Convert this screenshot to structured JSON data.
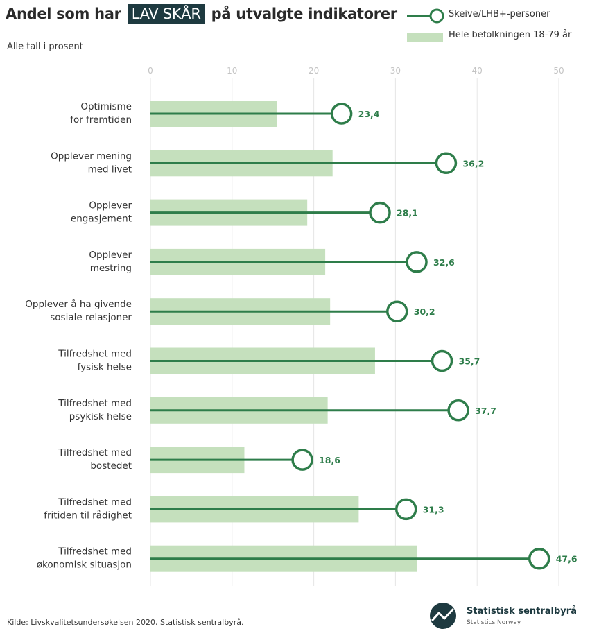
{
  "header": {
    "title_pre": "Andel som har",
    "title_highlight": "LAV SKÅR",
    "title_post": "på utvalgte indikatorer",
    "subtitle": "Alle tall i prosent"
  },
  "colors": {
    "line": "#2e7d4a",
    "bar": "#c5e0bd",
    "highlight_bg": "#1e3a40",
    "grid": "#e6e6e6",
    "tick": "#c4c4c4"
  },
  "chart_data": {
    "type": "bar",
    "orientation": "horizontal",
    "xlim": [
      0,
      50
    ],
    "xticks": [
      0,
      10,
      20,
      30,
      40,
      50
    ],
    "xtick_labels": [
      "0",
      "10",
      "20",
      "30",
      "40",
      "50"
    ],
    "grid": true,
    "legend_position": "top-right",
    "categories": [
      [
        "Optimisme",
        "for fremtiden"
      ],
      [
        "Opplever mening",
        "med livet"
      ],
      [
        "Opplever",
        "engasjement"
      ],
      [
        "Opplever",
        "mestring"
      ],
      [
        "Opplever å ha givende",
        "sosiale relasjoner"
      ],
      [
        "Tilfredshet med",
        "fysisk helse"
      ],
      [
        "Tilfredshet med",
        "psykisk helse"
      ],
      [
        "Tilfredshet med",
        "bostedet"
      ],
      [
        "Tilfredshet med",
        "fritiden til rådighet"
      ],
      [
        "Tilfredshet med",
        "økonomisk situasjon"
      ]
    ],
    "series": [
      {
        "name": "Skeive/LHB+-personer",
        "style": "lollipop",
        "values": [
          23.4,
          36.2,
          28.1,
          32.6,
          30.2,
          35.7,
          37.7,
          18.6,
          31.3,
          47.6
        ],
        "labels": [
          "23,4",
          "36,2",
          "28,1",
          "32,6",
          "30,2",
          "35,7",
          "37,7",
          "18,6",
          "31,3",
          "47,6"
        ]
      },
      {
        "name": "Hele befolkningen 18-79 år",
        "style": "bar",
        "values": [
          15.5,
          22.3,
          19.2,
          21.4,
          22.0,
          27.5,
          21.7,
          11.5,
          25.5,
          32.6
        ]
      }
    ]
  },
  "footer": {
    "source": "Kilde: Livskvalitetsundersøkelsen 2020, Statistisk sentralbyrå.",
    "logo_name": "Statistisk sentralbyrå",
    "logo_sub": "Statistics Norway"
  }
}
